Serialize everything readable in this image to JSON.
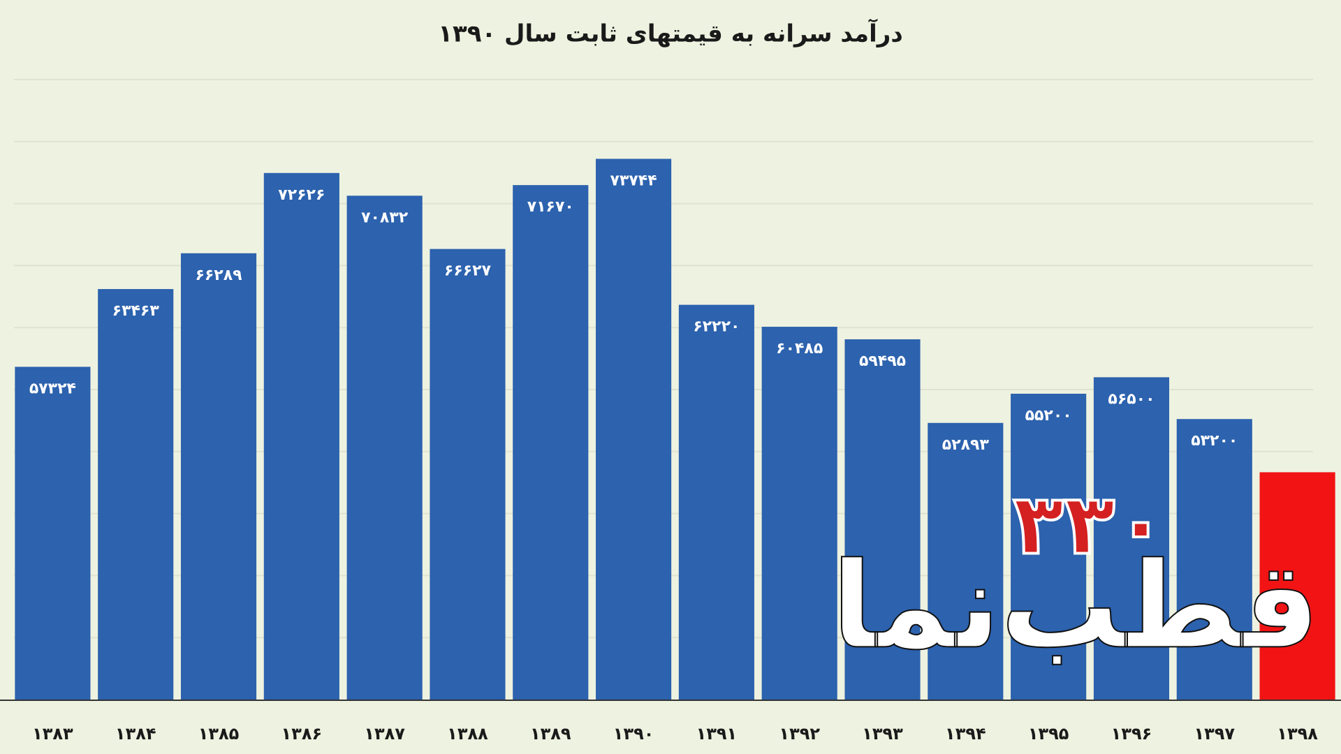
{
  "chart_data": {
    "type": "bar",
    "title": "درآمد سرانه به قیمتهای ثابت سال ۱۳۹۰",
    "categories": [
      "۱۳۸۳",
      "۱۳۸۴",
      "۱۳۸۵",
      "۱۳۸۶",
      "۱۳۸۷",
      "۱۳۸۸",
      "۱۳۸۹",
      "۱۳۹۰",
      "۱۳۹۱",
      "۱۳۹۲",
      "۱۳۹۳",
      "۱۳۹۴",
      "۱۳۹۵",
      "۱۳۹۶",
      "۱۳۹۷",
      "۱۳۹۸"
    ],
    "values": [
      57324,
      63463,
      66289,
      72626,
      70832,
      66627,
      71670,
      73744,
      62220,
      60485,
      59495,
      52893,
      55200,
      56500,
      53200,
      49000
    ],
    "value_labels": [
      "۵۷۳۲۴",
      "۶۳۴۶۳",
      "۶۶۲۸۹",
      "۷۲۶۲۶",
      "۷۰۸۳۲",
      "۶۶۶۲۷",
      "۷۱۶۷۰",
      "۷۳۷۴۴",
      "۶۲۲۲۰",
      "۶۰۴۸۵",
      "۵۹۴۹۵",
      "۵۲۸۹۳",
      "۵۵۲۰۰",
      "۵۶۵۰۰",
      "۵۳۲۰۰",
      null
    ],
    "colors": [
      "#2c62ae",
      "#2c62ae",
      "#2c62ae",
      "#2c62ae",
      "#2c62ae",
      "#2c62ae",
      "#2c62ae",
      "#2c62ae",
      "#2c62ae",
      "#2c62ae",
      "#2c62ae",
      "#2c62ae",
      "#2c62ae",
      "#2c62ae",
      "#2c62ae",
      "#f21414"
    ],
    "ylim": [
      31000,
      80000
    ],
    "logo_text": "قطب‌نما",
    "logo_number": "۳۳۰"
  }
}
